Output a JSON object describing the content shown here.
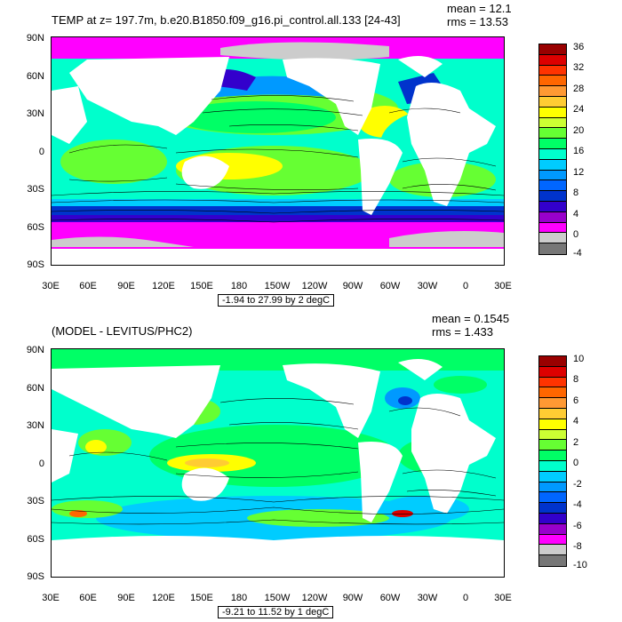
{
  "panel1": {
    "title": "TEMP at z= 197.7m, b.e20.B1850.f09_g16.pi_control.all.133 [24-43]",
    "mean": "mean = 12.1",
    "rms": "rms = 13.53",
    "range": "-1.94 to 27.99 by 2 degC",
    "lat_ticks": [
      "90N",
      "60N",
      "30N",
      "0",
      "30S",
      "60S",
      "90S"
    ],
    "lon_ticks": [
      "30E",
      "60E",
      "90E",
      "120E",
      "150E",
      "180",
      "150W",
      "120W",
      "90W",
      "60W",
      "30W",
      "0",
      "30E"
    ],
    "colorbar_labels": [
      "36",
      "32",
      "28",
      "24",
      "20",
      "16",
      "12",
      "8",
      "4",
      "0",
      "-4"
    ],
    "colorbar_colors": [
      "#990000",
      "#dd0000",
      "#ff3300",
      "#ff6600",
      "#ff9933",
      "#ffcc33",
      "#ffff00",
      "#ccff33",
      "#66ff33",
      "#00ff66",
      "#00ffcc",
      "#00ccff",
      "#0099ff",
      "#0066ff",
      "#0033cc",
      "#3300cc",
      "#9900cc",
      "#ff00ff",
      "#cccccc",
      "#777777"
    ]
  },
  "panel2": {
    "title": "(MODEL - LEVITUS/PHC2)",
    "mean": "mean = 0.1545",
    "rms": "rms = 1.433",
    "range": "-9.21 to 11.52 by 1 degC",
    "lat_ticks": [
      "90N",
      "60N",
      "30N",
      "0",
      "30S",
      "60S",
      "90S"
    ],
    "lon_ticks": [
      "30E",
      "60E",
      "90E",
      "120E",
      "150E",
      "180",
      "150W",
      "120W",
      "90W",
      "60W",
      "30W",
      "0",
      "30E"
    ],
    "colorbar_labels": [
      "10",
      "8",
      "6",
      "4",
      "2",
      "0",
      "-2",
      "-4",
      "-6",
      "-8",
      "-10"
    ],
    "colorbar_colors": [
      "#990000",
      "#dd0000",
      "#ff3300",
      "#ff6600",
      "#ff9933",
      "#ffcc33",
      "#ffff00",
      "#ccff33",
      "#66ff33",
      "#00ff66",
      "#00ffcc",
      "#00ccff",
      "#0099ff",
      "#0066ff",
      "#0033cc",
      "#3300cc",
      "#9900cc",
      "#ff00ff",
      "#cccccc",
      "#777777"
    ]
  }
}
